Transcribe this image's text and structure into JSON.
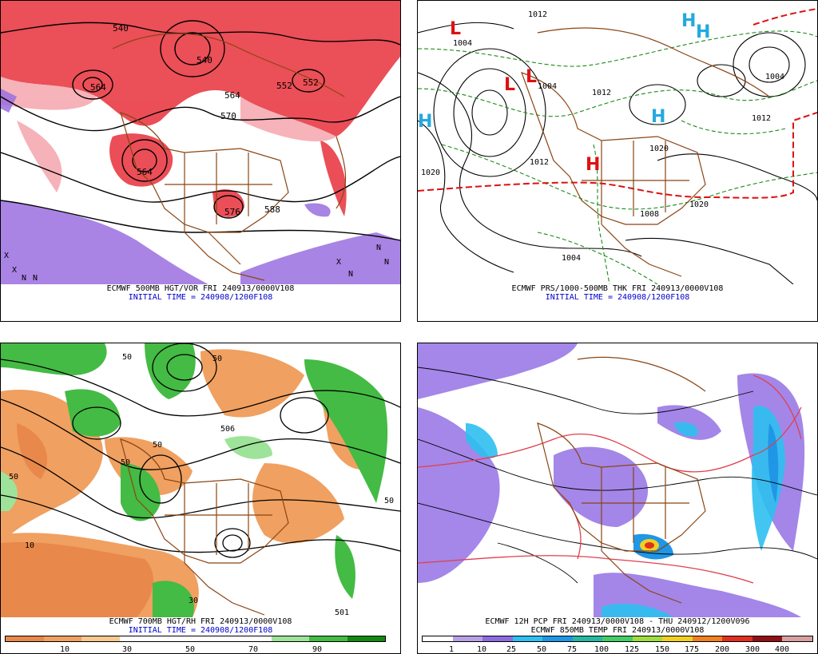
{
  "panels": {
    "tl": {
      "caption1": "ECMWF 500MB HGT/VOR FRI 240913/0000V108",
      "caption2": "INITIAL TIME = 240908/1200F108",
      "contour_labels": [
        "540",
        "540",
        "552",
        "564",
        "564",
        "570",
        "576",
        "564",
        "552",
        "588"
      ],
      "marks": [
        "X",
        "X",
        "N",
        "N",
        "N",
        "N",
        "X",
        "N"
      ]
    },
    "tr": {
      "caption1": "ECMWF PRS/1000-500MB THK FRI 240913/0000V108",
      "caption2": "INITIAL TIME = 240908/1200F108",
      "isobar_labels": [
        "1012",
        "1004",
        "1004",
        "1012",
        "1012",
        "1020",
        "1020",
        "1004",
        "1008",
        "1012",
        "1004",
        "1020"
      ],
      "pressure_centers": [
        "L",
        "L",
        "L",
        "H",
        "H",
        "H",
        "H",
        "H"
      ]
    },
    "bl": {
      "caption1": "ECMWF 700MB HGT/RH FRI 240913/0000V108",
      "caption2": "INITIAL TIME = 240908/1200F108",
      "contour_labels": [
        "50",
        "50",
        "506",
        "50",
        "50",
        "50",
        "10",
        "50",
        "30",
        "501"
      ],
      "legend_ticks": [
        "10",
        "30",
        "50",
        "70",
        "90"
      ],
      "legend_colors": [
        "#e8884a",
        "#f0a060",
        "#f8c890",
        "#ffffff",
        "#ffffff",
        "#ffffff",
        "#ffffff",
        "#9ee39a",
        "#44bb44",
        "#118811"
      ]
    },
    "br": {
      "caption1": "ECMWF 12H PCP FRI 240913/0000V108 - THU 240912/1200V096",
      "caption2": "ECMWF 850MB TEMP FRI 240913/0000V108",
      "legend_ticks": [
        "1",
        "10",
        "25",
        "50",
        "75",
        "100",
        "125",
        "150",
        "175",
        "200",
        "300",
        "400"
      ],
      "legend_colors": [
        "#ffffff",
        "#b8a0e8",
        "#8e6be0",
        "#2ec0f0",
        "#1f96e6",
        "#26b8a0",
        "#44cc66",
        "#9fdc40",
        "#f0d020",
        "#f08020",
        "#e03020",
        "#901018",
        "#d8a0a0"
      ]
    }
  }
}
